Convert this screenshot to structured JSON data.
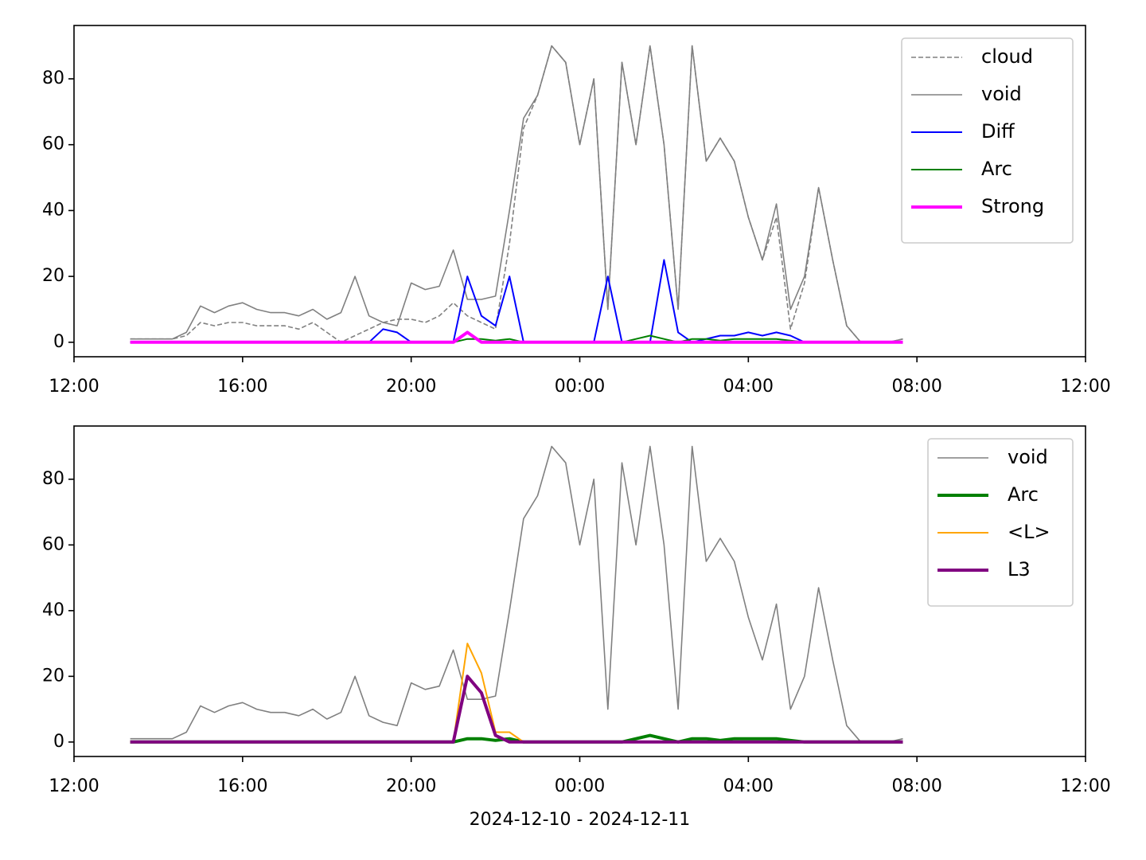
{
  "chart_data": [
    {
      "type": "line",
      "x": [
        "2024-12-10 13:20",
        "2024-12-10 13:40",
        "2024-12-10 14:00",
        "2024-12-10 14:20",
        "2024-12-10 14:40",
        "2024-12-10 15:00",
        "2024-12-10 15:20",
        "2024-12-10 15:40",
        "2024-12-10 16:00",
        "2024-12-10 16:20",
        "2024-12-10 16:40",
        "2024-12-10 17:00",
        "2024-12-10 17:20",
        "2024-12-10 17:40",
        "2024-12-10 18:00",
        "2024-12-10 18:20",
        "2024-12-10 18:40",
        "2024-12-10 19:00",
        "2024-12-10 19:20",
        "2024-12-10 19:40",
        "2024-12-10 20:00",
        "2024-12-10 20:20",
        "2024-12-10 20:40",
        "2024-12-10 21:00",
        "2024-12-10 21:20",
        "2024-12-10 21:40",
        "2024-12-10 22:00",
        "2024-12-10 22:20",
        "2024-12-10 22:40",
        "2024-12-10 23:00",
        "2024-12-10 23:20",
        "2024-12-10 23:40",
        "2024-12-11 00:00",
        "2024-12-11 00:20",
        "2024-12-11 00:40",
        "2024-12-11 01:00",
        "2024-12-11 01:20",
        "2024-12-11 01:40",
        "2024-12-11 02:00",
        "2024-12-11 02:20",
        "2024-12-11 02:40",
        "2024-12-11 03:00",
        "2024-12-11 03:20",
        "2024-12-11 03:40",
        "2024-12-11 04:00",
        "2024-12-11 04:20",
        "2024-12-11 04:40",
        "2024-12-11 05:00",
        "2024-12-11 05:20",
        "2024-12-11 05:40",
        "2024-12-11 06:00",
        "2024-12-11 06:20",
        "2024-12-11 06:40",
        "2024-12-11 07:00",
        "2024-12-11 07:20",
        "2024-12-11 07:40"
      ],
      "series": [
        {
          "name": "cloud",
          "color": "#808080",
          "linestyle": "dashed",
          "linewidth": 1.6,
          "values": [
            1,
            1,
            1,
            1,
            2,
            6,
            5,
            6,
            6,
            5,
            5,
            5,
            4,
            6,
            3,
            0,
            2,
            4,
            6,
            7,
            7,
            6,
            8,
            12,
            8,
            6,
            4,
            30,
            65,
            75,
            90,
            85,
            60,
            80,
            10,
            85,
            60,
            90,
            60,
            10,
            90,
            55,
            62,
            55,
            38,
            25,
            38,
            4,
            18,
            47,
            25,
            5,
            0,
            0,
            0,
            1
          ]
        },
        {
          "name": "void",
          "color": "#808080",
          "linestyle": "solid",
          "linewidth": 1.6,
          "values": [
            1,
            1,
            1,
            1,
            3,
            11,
            9,
            11,
            12,
            10,
            9,
            9,
            8,
            10,
            7,
            9,
            20,
            8,
            6,
            5,
            18,
            16,
            17,
            28,
            13,
            13,
            14,
            40,
            68,
            75,
            90,
            85,
            60,
            80,
            10,
            85,
            60,
            90,
            60,
            10,
            90,
            55,
            62,
            55,
            38,
            25,
            42,
            10,
            20,
            47,
            25,
            5,
            0,
            0,
            0,
            1
          ]
        },
        {
          "name": "Diff",
          "color": "#0000ff",
          "linestyle": "solid",
          "linewidth": 2,
          "values": [
            0,
            0,
            0,
            0,
            0,
            0,
            0,
            0,
            0,
            0,
            0,
            0,
            0,
            0,
            0,
            0,
            0,
            0,
            4,
            3,
            0,
            0,
            0,
            0,
            20,
            8,
            5,
            20,
            0,
            0,
            0,
            0,
            0,
            0,
            20,
            0,
            0,
            0,
            25,
            3,
            0,
            1,
            2,
            2,
            3,
            2,
            3,
            2,
            0,
            0,
            0,
            0,
            0,
            0,
            0,
            0
          ]
        },
        {
          "name": "Arc",
          "color": "#008000",
          "linestyle": "solid",
          "linewidth": 2,
          "values": [
            0,
            0,
            0,
            0,
            0,
            0,
            0,
            0,
            0,
            0,
            0,
            0,
            0,
            0,
            0,
            0,
            0,
            0,
            0,
            0,
            0,
            0,
            0,
            0,
            1,
            1,
            0.5,
            1,
            0,
            0,
            0,
            0,
            0,
            0,
            0,
            0,
            1,
            2,
            1,
            0,
            1,
            1,
            0.5,
            1,
            1,
            1,
            1,
            0.5,
            0,
            0,
            0,
            0,
            0,
            0,
            0,
            0
          ]
        },
        {
          "name": "Strong",
          "color": "#ff00ff",
          "linestyle": "solid",
          "linewidth": 4,
          "values": [
            0,
            0,
            0,
            0,
            0,
            0,
            0,
            0,
            0,
            0,
            0,
            0,
            0,
            0,
            0,
            0,
            0,
            0,
            0,
            0,
            0,
            0,
            0,
            0,
            3,
            0,
            0,
            0,
            0,
            0,
            0,
            0,
            0,
            0,
            0,
            0,
            0,
            0,
            0,
            0,
            0,
            0,
            0,
            0,
            0,
            0,
            0,
            0,
            0,
            0,
            0,
            0,
            0,
            0,
            0,
            0
          ]
        }
      ],
      "xlim": [
        "2024-12-10 12:00",
        "2024-12-11 12:00"
      ],
      "xticks": [
        {
          "value": "2024-12-10 12:00",
          "label": "12:00"
        },
        {
          "value": "2024-12-10 16:00",
          "label": "16:00"
        },
        {
          "value": "2024-12-10 20:00",
          "label": "20:00"
        },
        {
          "value": "2024-12-11 00:00",
          "label": "00:00"
        },
        {
          "value": "2024-12-11 04:00",
          "label": "04:00"
        },
        {
          "value": "2024-12-11 08:00",
          "label": "08:00"
        },
        {
          "value": "2024-12-11 12:00",
          "label": "12:00"
        }
      ],
      "ylim": [
        -4.4,
        96.2
      ],
      "yticks": [
        0,
        20,
        40,
        60,
        80
      ],
      "legend": "upper right"
    },
    {
      "type": "line",
      "x": [
        "2024-12-10 13:20",
        "2024-12-10 13:40",
        "2024-12-10 14:00",
        "2024-12-10 14:20",
        "2024-12-10 14:40",
        "2024-12-10 15:00",
        "2024-12-10 15:20",
        "2024-12-10 15:40",
        "2024-12-10 16:00",
        "2024-12-10 16:20",
        "2024-12-10 16:40",
        "2024-12-10 17:00",
        "2024-12-10 17:20",
        "2024-12-10 17:40",
        "2024-12-10 18:00",
        "2024-12-10 18:20",
        "2024-12-10 18:40",
        "2024-12-10 19:00",
        "2024-12-10 19:20",
        "2024-12-10 19:40",
        "2024-12-10 20:00",
        "2024-12-10 20:20",
        "2024-12-10 20:40",
        "2024-12-10 21:00",
        "2024-12-10 21:20",
        "2024-12-10 21:40",
        "2024-12-10 22:00",
        "2024-12-10 22:20",
        "2024-12-10 22:40",
        "2024-12-10 23:00",
        "2024-12-10 23:20",
        "2024-12-10 23:40",
        "2024-12-11 00:00",
        "2024-12-11 00:20",
        "2024-12-11 00:40",
        "2024-12-11 01:00",
        "2024-12-11 01:20",
        "2024-12-11 01:40",
        "2024-12-11 02:00",
        "2024-12-11 02:20",
        "2024-12-11 02:40",
        "2024-12-11 03:00",
        "2024-12-11 03:20",
        "2024-12-11 03:40",
        "2024-12-11 04:00",
        "2024-12-11 04:20",
        "2024-12-11 04:40",
        "2024-12-11 05:00",
        "2024-12-11 05:20",
        "2024-12-11 05:40",
        "2024-12-11 06:00",
        "2024-12-11 06:20",
        "2024-12-11 06:40",
        "2024-12-11 07:00",
        "2024-12-11 07:20",
        "2024-12-11 07:40"
      ],
      "series": [
        {
          "name": "void",
          "color": "#808080",
          "linestyle": "solid",
          "linewidth": 1.6,
          "values": [
            1,
            1,
            1,
            1,
            3,
            11,
            9,
            11,
            12,
            10,
            9,
            9,
            8,
            10,
            7,
            9,
            20,
            8,
            6,
            5,
            18,
            16,
            17,
            28,
            13,
            13,
            14,
            40,
            68,
            75,
            90,
            85,
            60,
            80,
            10,
            85,
            60,
            90,
            60,
            10,
            90,
            55,
            62,
            55,
            38,
            25,
            42,
            10,
            20,
            47,
            25,
            5,
            0,
            0,
            0,
            1
          ]
        },
        {
          "name": "Arc",
          "color": "#008000",
          "linestyle": "solid",
          "linewidth": 4,
          "values": [
            0,
            0,
            0,
            0,
            0,
            0,
            0,
            0,
            0,
            0,
            0,
            0,
            0,
            0,
            0,
            0,
            0,
            0,
            0,
            0,
            0,
            0,
            0,
            0,
            1,
            1,
            0.5,
            1,
            0,
            0,
            0,
            0,
            0,
            0,
            0,
            0,
            1,
            2,
            1,
            0,
            1,
            1,
            0.5,
            1,
            1,
            1,
            1,
            0.5,
            0,
            0,
            0,
            0,
            0,
            0,
            0,
            0
          ]
        },
        {
          "name": "<L>",
          "color": "#ffa500",
          "linestyle": "solid",
          "linewidth": 2,
          "values": [
            0,
            0,
            0,
            0,
            0,
            0,
            0,
            0,
            0,
            0,
            0,
            0,
            0,
            0,
            0,
            0,
            0,
            0,
            0,
            0,
            0,
            0,
            0,
            0,
            30,
            21,
            3,
            3,
            0,
            0,
            0,
            0,
            0,
            0,
            0,
            0,
            0,
            0,
            0,
            0,
            0,
            0,
            0,
            0,
            0,
            0,
            0,
            0,
            0,
            0,
            0,
            0,
            0,
            0,
            0,
            0
          ]
        },
        {
          "name": "L3",
          "color": "#800080",
          "linestyle": "solid",
          "linewidth": 4,
          "values": [
            0,
            0,
            0,
            0,
            0,
            0,
            0,
            0,
            0,
            0,
            0,
            0,
            0,
            0,
            0,
            0,
            0,
            0,
            0,
            0,
            0,
            0,
            0,
            0,
            20,
            15,
            2,
            0,
            0,
            0,
            0,
            0,
            0,
            0,
            0,
            0,
            0,
            0,
            0,
            0,
            0,
            0,
            0,
            0,
            0,
            0,
            0,
            0,
            0,
            0,
            0,
            0,
            0,
            0,
            0,
            0
          ]
        }
      ],
      "xlabel": "2024-12-10 - 2024-12-11",
      "xlim": [
        "2024-12-10 12:00",
        "2024-12-11 12:00"
      ],
      "xticks": [
        {
          "value": "2024-12-10 12:00",
          "label": "12:00"
        },
        {
          "value": "2024-12-10 16:00",
          "label": "16:00"
        },
        {
          "value": "2024-12-10 20:00",
          "label": "20:00"
        },
        {
          "value": "2024-12-11 00:00",
          "label": "00:00"
        },
        {
          "value": "2024-12-11 04:00",
          "label": "04:00"
        },
        {
          "value": "2024-12-11 08:00",
          "label": "08:00"
        },
        {
          "value": "2024-12-11 12:00",
          "label": "12:00"
        }
      ],
      "ylim": [
        -4.4,
        96.2
      ],
      "yticks": [
        0,
        20,
        40,
        60,
        80
      ],
      "legend": "upper right"
    }
  ]
}
